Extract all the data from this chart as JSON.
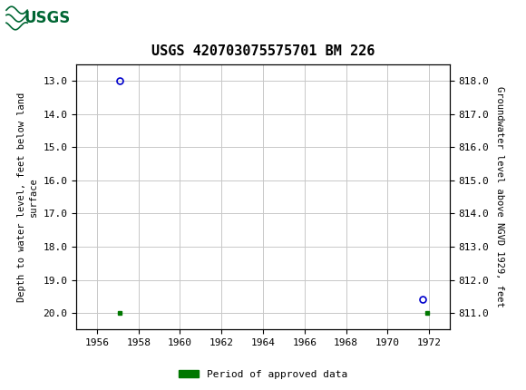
{
  "title": "USGS 420703075575701 BM 226",
  "xlabel_years": [
    1956,
    1958,
    1960,
    1962,
    1964,
    1966,
    1968,
    1970,
    1972
  ],
  "x_min": 1955.0,
  "x_max": 1973.0,
  "y_left_min": 20.5,
  "y_left_max": 12.5,
  "y_left_ticks": [
    13.0,
    14.0,
    15.0,
    16.0,
    17.0,
    18.0,
    19.0,
    20.0
  ],
  "y_right_min": 811.0,
  "y_right_max": 819.0,
  "y_right_ticks": [
    811.0,
    812.0,
    813.0,
    814.0,
    815.0,
    816.0,
    817.0,
    818.0
  ],
  "ylabel_left": "Depth to water level, feet below land\nsurface",
  "ylabel_right": "Groundwater level above NGVD 1929, feet",
  "data_points_circle": [
    {
      "x": 1957.1,
      "y_left": 13.0
    },
    {
      "x": 1971.7,
      "y_left": 19.6
    }
  ],
  "data_points_square": [
    {
      "x": 1957.1,
      "y_left": 20.0
    },
    {
      "x": 1971.9,
      "y_left": 20.0
    }
  ],
  "circle_color": "#0000cc",
  "square_color": "#007700",
  "circle_size": 5,
  "square_size": 3.5,
  "grid_color": "#c8c8c8",
  "bg_color": "#ffffff",
  "header_bg": "#006633",
  "legend_label": "Period of approved data",
  "legend_color": "#007700",
  "font_family": "monospace"
}
